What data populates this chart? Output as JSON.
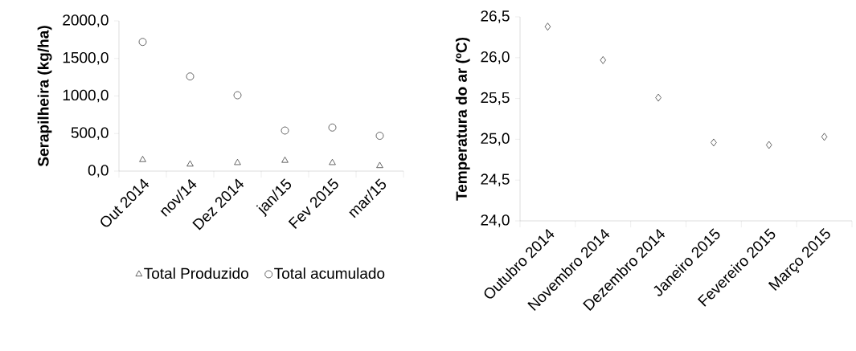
{
  "chart_data": [
    {
      "type": "scatter",
      "ylabel": "Serapilheira (kg/ha)",
      "categories": [
        "Out 2014",
        "nov/14",
        "Dez 2014",
        "jan/15",
        "Fev 2015",
        "mar/15"
      ],
      "series": [
        {
          "name": "Total Produzido",
          "color": "#404040",
          "marker": "triangle",
          "values": [
            150,
            90,
            110,
            140,
            110,
            70
          ]
        },
        {
          "name": "Total acumulado",
          "color": "#404040",
          "marker": "circle",
          "values": [
            1720,
            1260,
            1010,
            540,
            580,
            470
          ]
        }
      ],
      "ylim": [
        0,
        2000
      ],
      "yticks": [
        {
          "value": 0,
          "label": "0,0"
        },
        {
          "value": 500,
          "label": "500,0"
        },
        {
          "value": 1000,
          "label": "1000,0"
        },
        {
          "value": 1500,
          "label": "1500,0"
        },
        {
          "value": 2000,
          "label": "2000,0"
        }
      ],
      "legend": "bottom"
    },
    {
      "type": "scatter",
      "ylabel": "Temperatura do ar (ºC)",
      "categories": [
        "Outubro 2014",
        "Novembro 2014",
        "Dezembro 2014",
        "Janeiro 2015",
        "Fevereiro 2015",
        "Março 2015"
      ],
      "series": [
        {
          "color": "#404040",
          "marker": "diamond",
          "values": [
            26.38,
            25.97,
            25.51,
            24.96,
            24.93,
            25.03
          ]
        }
      ],
      "ylim": [
        24,
        26.5
      ],
      "yticks": [
        {
          "value": 24,
          "label": "24,0"
        },
        {
          "value": 24.5,
          "label": "24,5"
        },
        {
          "value": 25,
          "label": "25,0"
        },
        {
          "value": 25.5,
          "label": "25,5"
        },
        {
          "value": 26,
          "label": "26,0"
        },
        {
          "value": 26.5,
          "label": "26,5"
        }
      ]
    }
  ]
}
